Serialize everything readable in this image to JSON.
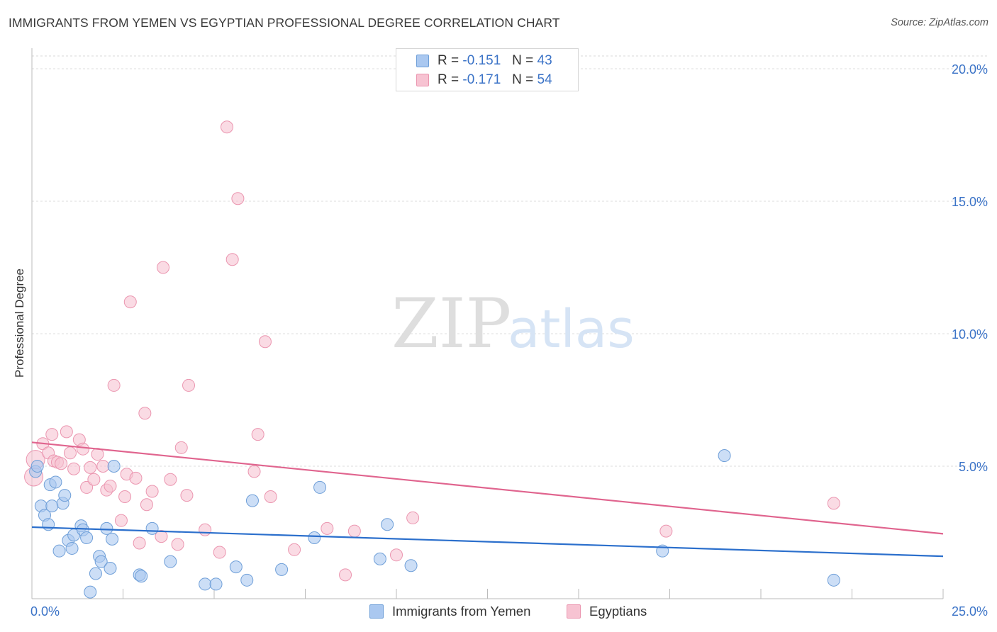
{
  "title": "IMMIGRANTS FROM YEMEN VS EGYPTIAN PROFESSIONAL DEGREE CORRELATION CHART",
  "source": "Source: ZipAtlas.com",
  "watermark": {
    "zip": "ZIP",
    "atlas": "atlas"
  },
  "legend_top": {
    "r_label": "R =",
    "n_label": "N =",
    "yemen": {
      "r": "-0.151",
      "n": "43"
    },
    "egypt": {
      "r": "-0.171",
      "n": "54"
    }
  },
  "colors": {
    "yemen_fill": "#aac8f0",
    "yemen_stroke": "#6f9fd8",
    "yemen_line": "#2b6fcc",
    "egypt_fill": "#f7c3d2",
    "egypt_stroke": "#eb96b0",
    "egypt_line": "#e0648e",
    "tick_text": "#3b73c7"
  },
  "chart_data": {
    "type": "scatter",
    "title": "IMMIGRANTS FROM YEMEN VS EGYPTIAN PROFESSIONAL DEGREE CORRELATION CHART",
    "xlabel": "",
    "ylabel": "Professional Degree",
    "xlim": [
      0,
      25
    ],
    "ylim": [
      0,
      20.5
    ],
    "x_tick_labels": [
      "0.0%",
      "25.0%"
    ],
    "y_ticks": [
      {
        "value": 5,
        "label": "5.0%"
      },
      {
        "value": 10,
        "label": "10.0%"
      },
      {
        "value": 15,
        "label": "15.0%"
      },
      {
        "value": 20,
        "label": "20.0%"
      }
    ],
    "series": [
      {
        "name": "Immigrants from Yemen",
        "trend": [
          [
            0,
            2.7
          ],
          [
            25,
            1.6
          ]
        ],
        "points": [
          [
            0.1,
            4.8
          ],
          [
            0.15,
            5.0
          ],
          [
            0.25,
            3.5
          ],
          [
            0.35,
            3.15
          ],
          [
            0.45,
            2.8
          ],
          [
            0.5,
            4.3
          ],
          [
            0.55,
            3.5
          ],
          [
            0.65,
            4.4
          ],
          [
            0.75,
            1.8
          ],
          [
            0.85,
            3.6
          ],
          [
            0.9,
            3.9
          ],
          [
            1.0,
            2.2
          ],
          [
            1.1,
            1.9
          ],
          [
            1.15,
            2.4
          ],
          [
            1.35,
            2.75
          ],
          [
            1.4,
            2.6
          ],
          [
            1.5,
            2.3
          ],
          [
            1.6,
            0.25
          ],
          [
            1.75,
            0.95
          ],
          [
            1.85,
            1.6
          ],
          [
            1.9,
            1.4
          ],
          [
            2.05,
            2.65
          ],
          [
            2.15,
            1.15
          ],
          [
            2.2,
            2.25
          ],
          [
            2.25,
            5.0
          ],
          [
            2.95,
            0.9
          ],
          [
            3.0,
            0.85
          ],
          [
            3.3,
            2.65
          ],
          [
            3.8,
            1.4
          ],
          [
            4.75,
            0.55
          ],
          [
            5.05,
            0.55
          ],
          [
            5.6,
            1.2
          ],
          [
            5.9,
            0.7
          ],
          [
            6.05,
            3.7
          ],
          [
            6.85,
            1.1
          ],
          [
            7.75,
            2.3
          ],
          [
            7.9,
            4.2
          ],
          [
            9.55,
            1.5
          ],
          [
            9.75,
            2.8
          ],
          [
            10.4,
            1.25
          ],
          [
            17.3,
            1.8
          ],
          [
            19.0,
            5.4
          ],
          [
            22.0,
            0.7
          ]
        ]
      },
      {
        "name": "Egyptians",
        "trend": [
          [
            0,
            5.9
          ],
          [
            25,
            2.45
          ]
        ],
        "points": [
          [
            0.05,
            4.6
          ],
          [
            0.1,
            5.25
          ],
          [
            0.3,
            5.85
          ],
          [
            0.45,
            5.5
          ],
          [
            0.55,
            6.2
          ],
          [
            0.6,
            5.2
          ],
          [
            0.7,
            5.15
          ],
          [
            0.8,
            5.1
          ],
          [
            0.95,
            6.3
          ],
          [
            1.05,
            5.5
          ],
          [
            1.15,
            4.9
          ],
          [
            1.3,
            6.0
          ],
          [
            1.4,
            5.65
          ],
          [
            1.5,
            4.2
          ],
          [
            1.6,
            4.95
          ],
          [
            1.7,
            4.5
          ],
          [
            1.8,
            5.45
          ],
          [
            1.95,
            5.0
          ],
          [
            2.05,
            4.1
          ],
          [
            2.15,
            4.25
          ],
          [
            2.25,
            8.05
          ],
          [
            2.45,
            2.95
          ],
          [
            2.55,
            3.85
          ],
          [
            2.6,
            4.7
          ],
          [
            2.7,
            11.2
          ],
          [
            2.85,
            4.55
          ],
          [
            2.95,
            2.1
          ],
          [
            3.1,
            7.0
          ],
          [
            3.15,
            3.55
          ],
          [
            3.3,
            4.05
          ],
          [
            3.6,
            12.5
          ],
          [
            3.55,
            2.35
          ],
          [
            3.8,
            4.5
          ],
          [
            4.0,
            2.05
          ],
          [
            4.1,
            5.7
          ],
          [
            4.25,
            3.9
          ],
          [
            4.3,
            8.05
          ],
          [
            4.75,
            2.6
          ],
          [
            5.15,
            1.75
          ],
          [
            5.35,
            17.8
          ],
          [
            5.5,
            12.8
          ],
          [
            5.65,
            15.1
          ],
          [
            6.1,
            4.8
          ],
          [
            6.2,
            6.2
          ],
          [
            6.4,
            9.7
          ],
          [
            6.55,
            3.85
          ],
          [
            7.2,
            1.85
          ],
          [
            8.1,
            2.65
          ],
          [
            8.6,
            0.9
          ],
          [
            8.85,
            2.55
          ],
          [
            10.0,
            1.65
          ],
          [
            10.45,
            3.05
          ],
          [
            17.4,
            2.55
          ],
          [
            22.0,
            3.6
          ]
        ]
      }
    ]
  },
  "legend_bottom": {
    "yemen": "Immigrants from Yemen",
    "egypt": "Egyptians"
  }
}
